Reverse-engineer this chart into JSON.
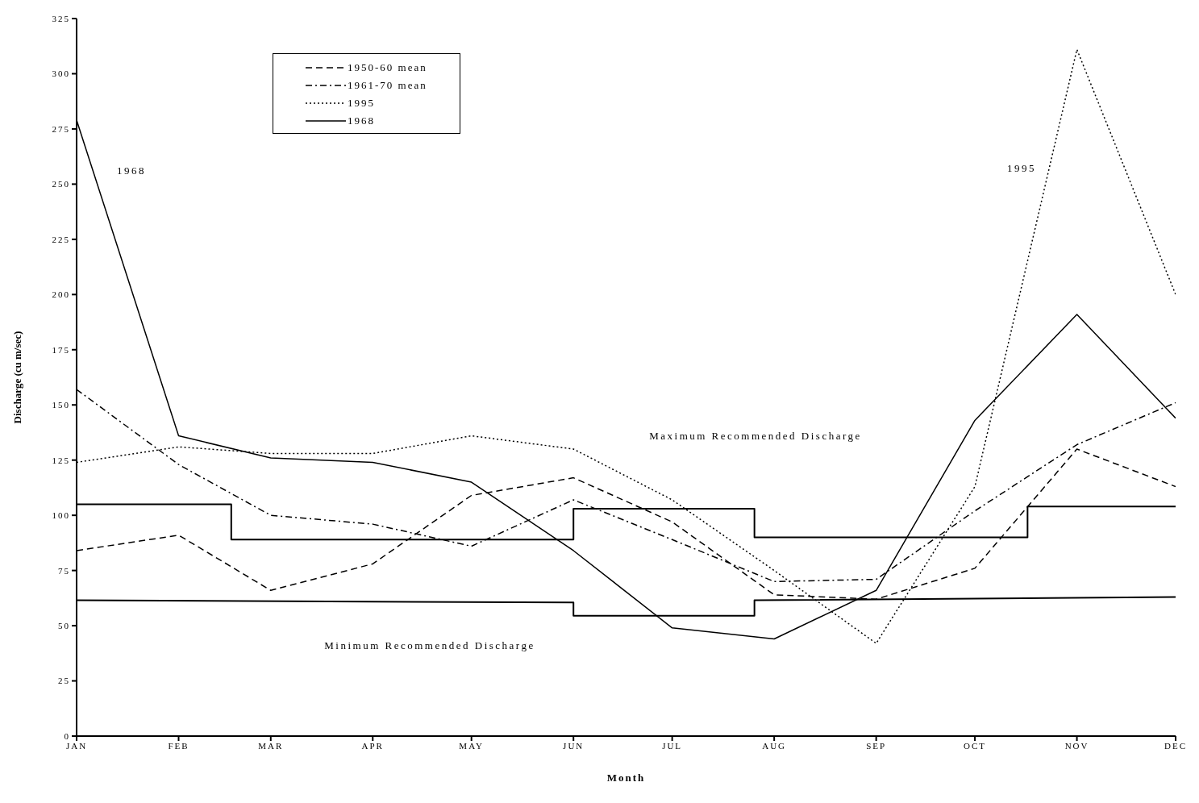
{
  "chart_data": {
    "type": "line",
    "xlabel": "Month",
    "ylabel": "Discharge (cu m/sec)",
    "x": [
      "--01-01",
      "--02-01",
      "--03-01",
      "--04-01",
      "--05-01",
      "--06-01",
      "--07-01",
      "--08-01",
      "--09-01",
      "--10-01",
      "--11-01",
      "--12-01"
    ],
    "xlim": [
      "--01-01",
      "--12-01"
    ],
    "xticks": [
      {
        "value": "--01-01",
        "label": "JAN"
      },
      {
        "value": "--02-01",
        "label": "FEB"
      },
      {
        "value": "--03-01",
        "label": "MAR"
      },
      {
        "value": "--04-01",
        "label": "APR"
      },
      {
        "value": "--05-01",
        "label": "MAY"
      },
      {
        "value": "--06-01",
        "label": "JUN"
      },
      {
        "value": "--07-01",
        "label": "JUL"
      },
      {
        "value": "--08-01",
        "label": "AUG"
      },
      {
        "value": "--09-01",
        "label": "SEP"
      },
      {
        "value": "--10-01",
        "label": "OCT"
      },
      {
        "value": "--11-01",
        "label": "NOV"
      },
      {
        "value": "--12-01",
        "label": "DEC"
      }
    ],
    "ylim": [
      0,
      325
    ],
    "yticks": [
      0,
      25,
      50,
      75,
      100,
      125,
      150,
      175,
      200,
      225,
      250,
      275,
      300,
      325
    ],
    "legend": "top left",
    "marker": "none",
    "series": [
      {
        "name": "1950-60 mean",
        "color": "#000000",
        "line_style": "dashed",
        "values": [
          84,
          91,
          66,
          78,
          109,
          117,
          97,
          64,
          62,
          76,
          130,
          113
        ]
      },
      {
        "name": "1961-70 mean",
        "color": "#000000",
        "line_style": "dashdot",
        "values": [
          157,
          123,
          100,
          96,
          86,
          107,
          89,
          70,
          71,
          102,
          132,
          151
        ]
      },
      {
        "name": "1995",
        "color": "#000000",
        "line_style": "dotted",
        "values": [
          124,
          131,
          128,
          128,
          136,
          130,
          107,
          75,
          42,
          113,
          311,
          200
        ]
      },
      {
        "name": "1968",
        "color": "#000000",
        "line_style": "solid",
        "values": [
          279,
          136,
          126,
          124,
          115,
          84,
          49,
          44,
          66,
          143,
          191,
          144
        ]
      },
      {
        "color": "#000000",
        "line_style": "solid",
        "x": [
          "--01-01",
          "--02-17",
          "--02-17",
          "--06-01",
          "--06-01",
          "--07-26",
          "--07-26",
          "--10-17",
          "--10-17",
          "--12-01"
        ],
        "values": [
          105,
          105,
          89,
          89,
          103,
          103,
          90,
          90,
          104,
          104
        ]
      },
      {
        "color": "#000000",
        "line_style": "solid",
        "x": [
          "--01-01",
          "--06-01",
          "--06-01",
          "--07-26",
          "--07-26",
          "--12-01"
        ],
        "values": [
          61.5,
          60.5,
          54.5,
          54.5,
          61.5,
          63
        ]
      }
    ],
    "annotations": [
      "1968",
      "1995",
      "Maximum Recommended Discharge",
      "Minimum Recommended Discharge"
    ]
  }
}
